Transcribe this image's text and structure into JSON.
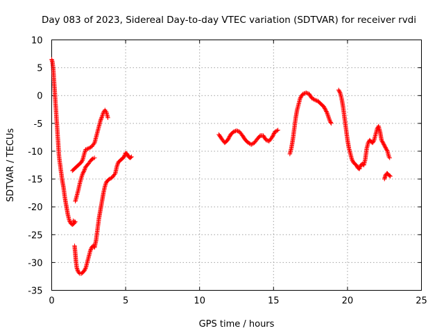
{
  "chart_data": {
    "type": "scatter",
    "title": "Day 083 of 2023, Sidereal Day-to-day VTEC variation (SDTVAR) for receiver rvdi",
    "xlabel": "GPS time / hours",
    "ylabel": "SDTVAR / TECUs",
    "xlim": [
      0,
      25
    ],
    "ylim": [
      -35,
      10
    ],
    "xticks": [
      "0",
      "5",
      "10",
      "15",
      "20",
      "25"
    ],
    "yticks": [
      "10",
      "5",
      "0",
      "-5",
      "-10",
      "-15",
      "-20",
      "-25",
      "-30",
      "-35"
    ],
    "grid": true,
    "marker": "+",
    "color": "#ff0000",
    "series": [
      {
        "points": [
          [
            0.0,
            6.5
          ],
          [
            0.05,
            6.0
          ],
          [
            0.1,
            5.0
          ],
          [
            0.15,
            3.0
          ],
          [
            0.2,
            1.0
          ],
          [
            0.25,
            -1.0
          ],
          [
            0.3,
            -3.0
          ],
          [
            0.35,
            -5.0
          ],
          [
            0.4,
            -7.0
          ],
          [
            0.45,
            -9.0
          ],
          [
            0.5,
            -11.0
          ],
          [
            0.6,
            -13.0
          ],
          [
            0.7,
            -15.0
          ],
          [
            0.8,
            -16.5
          ],
          [
            0.9,
            -18.5
          ],
          [
            1.0,
            -20.0
          ],
          [
            1.1,
            -21.5
          ],
          [
            1.2,
            -22.5
          ],
          [
            1.3,
            -23.0
          ],
          [
            1.4,
            -23.2
          ],
          [
            1.5,
            -23.0
          ],
          [
            1.6,
            -22.7
          ],
          [
            1.45,
            -22.5
          ]
        ]
      },
      {
        "points": [
          [
            1.4,
            -13.5
          ],
          [
            1.6,
            -13.0
          ],
          [
            1.8,
            -12.5
          ],
          [
            2.0,
            -12.0
          ],
          [
            2.1,
            -11.5
          ],
          [
            2.2,
            -10.5
          ],
          [
            2.3,
            -9.7
          ],
          [
            2.5,
            -9.5
          ],
          [
            2.7,
            -9.2
          ],
          [
            2.9,
            -8.5
          ],
          [
            3.0,
            -7.5
          ],
          [
            3.1,
            -6.5
          ],
          [
            3.2,
            -5.5
          ],
          [
            3.3,
            -4.5
          ],
          [
            3.4,
            -3.8
          ],
          [
            3.5,
            -3.0
          ],
          [
            3.6,
            -2.6
          ],
          [
            3.7,
            -3.0
          ],
          [
            3.8,
            -4.0
          ]
        ]
      },
      {
        "points": [
          [
            1.6,
            -19.0
          ],
          [
            1.7,
            -18.0
          ],
          [
            1.8,
            -17.0
          ],
          [
            1.9,
            -15.8
          ],
          [
            2.0,
            -14.8
          ],
          [
            2.1,
            -14.0
          ],
          [
            2.2,
            -13.5
          ],
          [
            2.3,
            -12.8
          ],
          [
            2.5,
            -12.2
          ],
          [
            2.6,
            -11.8
          ],
          [
            2.7,
            -11.5
          ],
          [
            2.8,
            -11.3
          ],
          [
            2.9,
            -11.2
          ]
        ]
      },
      {
        "points": [
          [
            1.55,
            -27.0
          ],
          [
            1.6,
            -28.5
          ],
          [
            1.65,
            -30.0
          ],
          [
            1.7,
            -31.0
          ],
          [
            1.8,
            -31.7
          ],
          [
            1.9,
            -32.0
          ],
          [
            2.0,
            -32.0
          ],
          [
            2.1,
            -31.8
          ],
          [
            2.2,
            -31.5
          ],
          [
            2.3,
            -31.0
          ],
          [
            2.4,
            -30.0
          ],
          [
            2.5,
            -29.0
          ],
          [
            2.6,
            -28.0
          ],
          [
            2.7,
            -27.3
          ],
          [
            2.8,
            -27.0
          ],
          [
            2.9,
            -27.3
          ],
          [
            3.0,
            -26.0
          ],
          [
            3.1,
            -24.0
          ],
          [
            3.2,
            -22.0
          ],
          [
            3.3,
            -20.5
          ],
          [
            3.4,
            -19.0
          ],
          [
            3.5,
            -17.5
          ],
          [
            3.6,
            -16.3
          ],
          [
            3.7,
            -15.5
          ],
          [
            3.9,
            -15.0
          ],
          [
            4.1,
            -14.7
          ],
          [
            4.3,
            -14.0
          ],
          [
            4.4,
            -12.8
          ],
          [
            4.5,
            -12.0
          ],
          [
            4.7,
            -11.5
          ],
          [
            4.9,
            -11.0
          ],
          [
            5.0,
            -10.3
          ],
          [
            5.1,
            -10.5
          ],
          [
            5.2,
            -11.0
          ],
          [
            5.3,
            -11.2
          ],
          [
            5.4,
            -11.0
          ]
        ]
      },
      {
        "points": [
          [
            11.3,
            -7.0
          ],
          [
            11.5,
            -7.8
          ],
          [
            11.7,
            -8.5
          ],
          [
            11.9,
            -8.0
          ],
          [
            12.1,
            -7.0
          ],
          [
            12.3,
            -6.5
          ],
          [
            12.5,
            -6.3
          ],
          [
            12.7,
            -6.5
          ],
          [
            12.9,
            -7.2
          ],
          [
            13.1,
            -8.0
          ],
          [
            13.3,
            -8.5
          ],
          [
            13.5,
            -8.8
          ],
          [
            13.7,
            -8.5
          ],
          [
            13.9,
            -7.8
          ],
          [
            14.1,
            -7.2
          ],
          [
            14.3,
            -7.2
          ],
          [
            14.5,
            -8.0
          ],
          [
            14.7,
            -8.2
          ],
          [
            14.9,
            -7.5
          ],
          [
            15.1,
            -6.5
          ],
          [
            15.3,
            -6.2
          ]
        ]
      },
      {
        "points": [
          [
            16.1,
            -10.5
          ],
          [
            16.2,
            -9.5
          ],
          [
            16.3,
            -8.0
          ],
          [
            16.4,
            -6.0
          ],
          [
            16.5,
            -4.0
          ],
          [
            16.6,
            -2.5
          ],
          [
            16.7,
            -1.5
          ],
          [
            16.8,
            -0.5
          ],
          [
            16.9,
            0.0
          ],
          [
            17.0,
            0.3
          ],
          [
            17.2,
            0.5
          ],
          [
            17.4,
            0.3
          ],
          [
            17.6,
            -0.5
          ],
          [
            17.8,
            -0.8
          ],
          [
            18.0,
            -1.0
          ],
          [
            18.2,
            -1.5
          ],
          [
            18.4,
            -2.0
          ],
          [
            18.6,
            -3.0
          ],
          [
            18.8,
            -4.5
          ],
          [
            18.9,
            -5.0
          ]
        ]
      },
      {
        "points": [
          [
            19.4,
            1.0
          ],
          [
            19.5,
            0.5
          ],
          [
            19.6,
            -0.5
          ],
          [
            19.7,
            -2.0
          ],
          [
            19.8,
            -4.0
          ],
          [
            19.9,
            -6.0
          ],
          [
            20.0,
            -8.0
          ],
          [
            20.1,
            -9.5
          ],
          [
            20.2,
            -10.5
          ],
          [
            20.3,
            -11.5
          ],
          [
            20.4,
            -12.0
          ],
          [
            20.5,
            -12.3
          ],
          [
            20.6,
            -12.5
          ],
          [
            20.7,
            -13.0
          ],
          [
            20.8,
            -13.2
          ],
          [
            20.9,
            -12.5
          ],
          [
            21.0,
            -12.3
          ],
          [
            21.1,
            -12.5
          ],
          [
            21.2,
            -11.5
          ],
          [
            21.3,
            -9.5
          ],
          [
            21.4,
            -8.5
          ],
          [
            21.5,
            -8.0
          ],
          [
            21.6,
            -8.3
          ],
          [
            21.7,
            -8.5
          ],
          [
            21.8,
            -8.0
          ],
          [
            21.9,
            -7.0
          ],
          [
            22.0,
            -6.0
          ],
          [
            22.1,
            -5.5
          ],
          [
            22.2,
            -6.5
          ],
          [
            22.3,
            -8.0
          ],
          [
            22.4,
            -8.5
          ],
          [
            22.5,
            -9.0
          ],
          [
            22.6,
            -9.5
          ],
          [
            22.7,
            -10.0
          ],
          [
            22.8,
            -11.0
          ],
          [
            22.85,
            -11.2
          ]
        ]
      },
      {
        "points": [
          [
            22.5,
            -15.0
          ],
          [
            22.55,
            -14.5
          ],
          [
            22.6,
            -14.2
          ],
          [
            22.65,
            -14.0
          ],
          [
            22.7,
            -14.0
          ],
          [
            22.8,
            -14.3
          ],
          [
            22.9,
            -14.5
          ]
        ]
      }
    ]
  }
}
